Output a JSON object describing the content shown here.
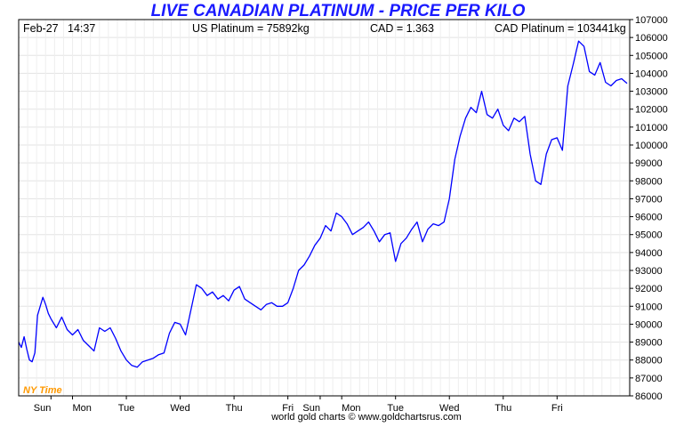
{
  "chart_data": {
    "type": "line",
    "title": "LIVE CANADIAN PLATINUM - PRICE PER KILO",
    "info": {
      "date": "Feb-27",
      "time": "14:37",
      "us_platinum": "US Platinum = 75892kg",
      "cad_rate": "CAD = 1.363",
      "cad_platinum": "CAD Platinum = 103441kg"
    },
    "xlabel": "",
    "ylabel": "",
    "ylim": [
      86000,
      107000
    ],
    "y_ticks": [
      86000,
      87000,
      88000,
      89000,
      90000,
      91000,
      92000,
      93000,
      94000,
      95000,
      96000,
      97000,
      98000,
      99000,
      100000,
      101000,
      102000,
      103000,
      104000,
      105000,
      106000,
      107000
    ],
    "x_ticks": [
      "Sun",
      "Mon",
      "Tue",
      "Wed",
      "Thu",
      "Fri",
      "Sun",
      "Mon",
      "Tue",
      "Wed",
      "Thu",
      "Fri"
    ],
    "x_range": [
      0,
      11.35
    ],
    "x_tick_positions": [
      0.6,
      1.0,
      2.0,
      3.0,
      4.0,
      5.0,
      5.6,
      6.0,
      7.0,
      8.0,
      9.0,
      10.0
    ],
    "timezone_label": "NY Time",
    "footer": "world gold charts © www.goldchartsrus.com",
    "grid": true,
    "line_color": "#0000ff",
    "series": [
      {
        "x": [
          0.0,
          0.05,
          0.1,
          0.15,
          0.2,
          0.25,
          0.3,
          0.35,
          0.4,
          0.45,
          0.5,
          0.55,
          0.6,
          0.7,
          0.8,
          0.9,
          1.0,
          1.1,
          1.2,
          1.3,
          1.4,
          1.5,
          1.6,
          1.7,
          1.8,
          1.9,
          2.0,
          2.1,
          2.2,
          2.3,
          2.4,
          2.5,
          2.6,
          2.7,
          2.8,
          2.9,
          3.0,
          3.1,
          3.2,
          3.3,
          3.4,
          3.5,
          3.6,
          3.7,
          3.8,
          3.9,
          4.0,
          4.1,
          4.2,
          4.3,
          4.4,
          4.5,
          4.6,
          4.7,
          4.8,
          4.9,
          5.0,
          5.1,
          5.2,
          5.3,
          5.4,
          5.5,
          5.6,
          5.7,
          5.8,
          5.9,
          6.0,
          6.1,
          6.2,
          6.3,
          6.4,
          6.5,
          6.6,
          6.7,
          6.8,
          6.9,
          7.0,
          7.1,
          7.2,
          7.3,
          7.4,
          7.5,
          7.6,
          7.7,
          7.8,
          7.9,
          8.0,
          8.1,
          8.2,
          8.3,
          8.4,
          8.5,
          8.6,
          8.7,
          8.8,
          8.9,
          9.0,
          9.1,
          9.2,
          9.3,
          9.4,
          9.5,
          9.6,
          9.7,
          9.8,
          9.9,
          10.0,
          10.1,
          10.2,
          10.3,
          10.4,
          10.5,
          10.6,
          10.7,
          10.8,
          10.9,
          11.0,
          11.1,
          11.2,
          11.3
        ],
        "values": [
          89000,
          88700,
          89300,
          88600,
          88000,
          87900,
          88400,
          90500,
          91000,
          91500,
          91100,
          90600,
          90300,
          89800,
          90400,
          89700,
          89400,
          89700,
          89100,
          88800,
          88500,
          89800,
          89600,
          89800,
          89200,
          88500,
          88000,
          87700,
          87600,
          87900,
          88000,
          88100,
          88300,
          88400,
          89500,
          90100,
          90000,
          89400,
          90800,
          92200,
          92000,
          91600,
          91800,
          91400,
          91600,
          91300,
          91900,
          92100,
          91400,
          91200,
          91000,
          90800,
          91100,
          91200,
          91000,
          91000,
          91200,
          92000,
          93000,
          93300,
          93800,
          94400,
          94800,
          95500,
          95200,
          96200,
          96000,
          95600,
          95000,
          95200,
          95400,
          95700,
          95200,
          94600,
          95000,
          95100,
          93500,
          94500,
          94800,
          95300,
          95700,
          94600,
          95300,
          95600,
          95500,
          95700,
          97000,
          99200,
          100500,
          101500,
          102100,
          101800,
          103000,
          101700,
          101500,
          102000,
          101100,
          100800,
          101500,
          101300,
          101600,
          99500,
          98000,
          97800,
          99500,
          100300,
          100400,
          99700,
          103300,
          104500,
          105800,
          105500,
          104100,
          103900,
          104600,
          103500,
          103300,
          103600,
          103700,
          103441
        ]
      }
    ]
  }
}
